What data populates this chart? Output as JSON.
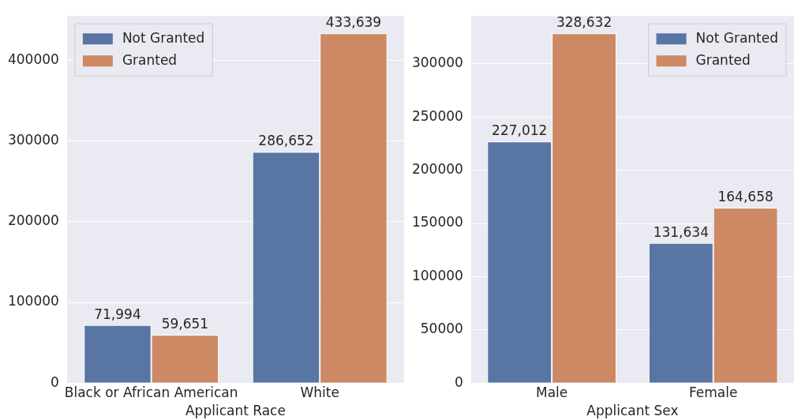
{
  "chart_data": [
    {
      "type": "bar",
      "xlabel": "Applicant Race",
      "categories": [
        "Black or African American",
        "White"
      ],
      "series": [
        {
          "name": "Not Granted",
          "color": "#5875a4",
          "values": [
            71994,
            286652
          ],
          "value_labels": [
            "71,994",
            "286,652"
          ]
        },
        {
          "name": "Granted",
          "color": "#cc8963",
          "values": [
            59651,
            433639
          ],
          "value_labels": [
            "59,651",
            "433,639"
          ]
        }
      ],
      "ylim": [
        0,
        455321
      ],
      "yticks": [
        0,
        100000,
        200000,
        300000,
        400000
      ],
      "grid": "y",
      "legend": "top left"
    },
    {
      "type": "bar",
      "xlabel": "Applicant Sex",
      "categories": [
        "Male",
        "Female"
      ],
      "series": [
        {
          "name": "Not Granted",
          "color": "#5875a4",
          "values": [
            227012,
            131634
          ],
          "value_labels": [
            "227,012",
            "131,634"
          ]
        },
        {
          "name": "Granted",
          "color": "#cc8963",
          "values": [
            328632,
            164658
          ],
          "value_labels": [
            "328,632",
            "164,658"
          ]
        }
      ],
      "ylim": [
        0,
        345064
      ],
      "yticks": [
        0,
        50000,
        100000,
        150000,
        200000,
        250000,
        300000
      ],
      "grid": "y",
      "legend": "top right"
    }
  ]
}
